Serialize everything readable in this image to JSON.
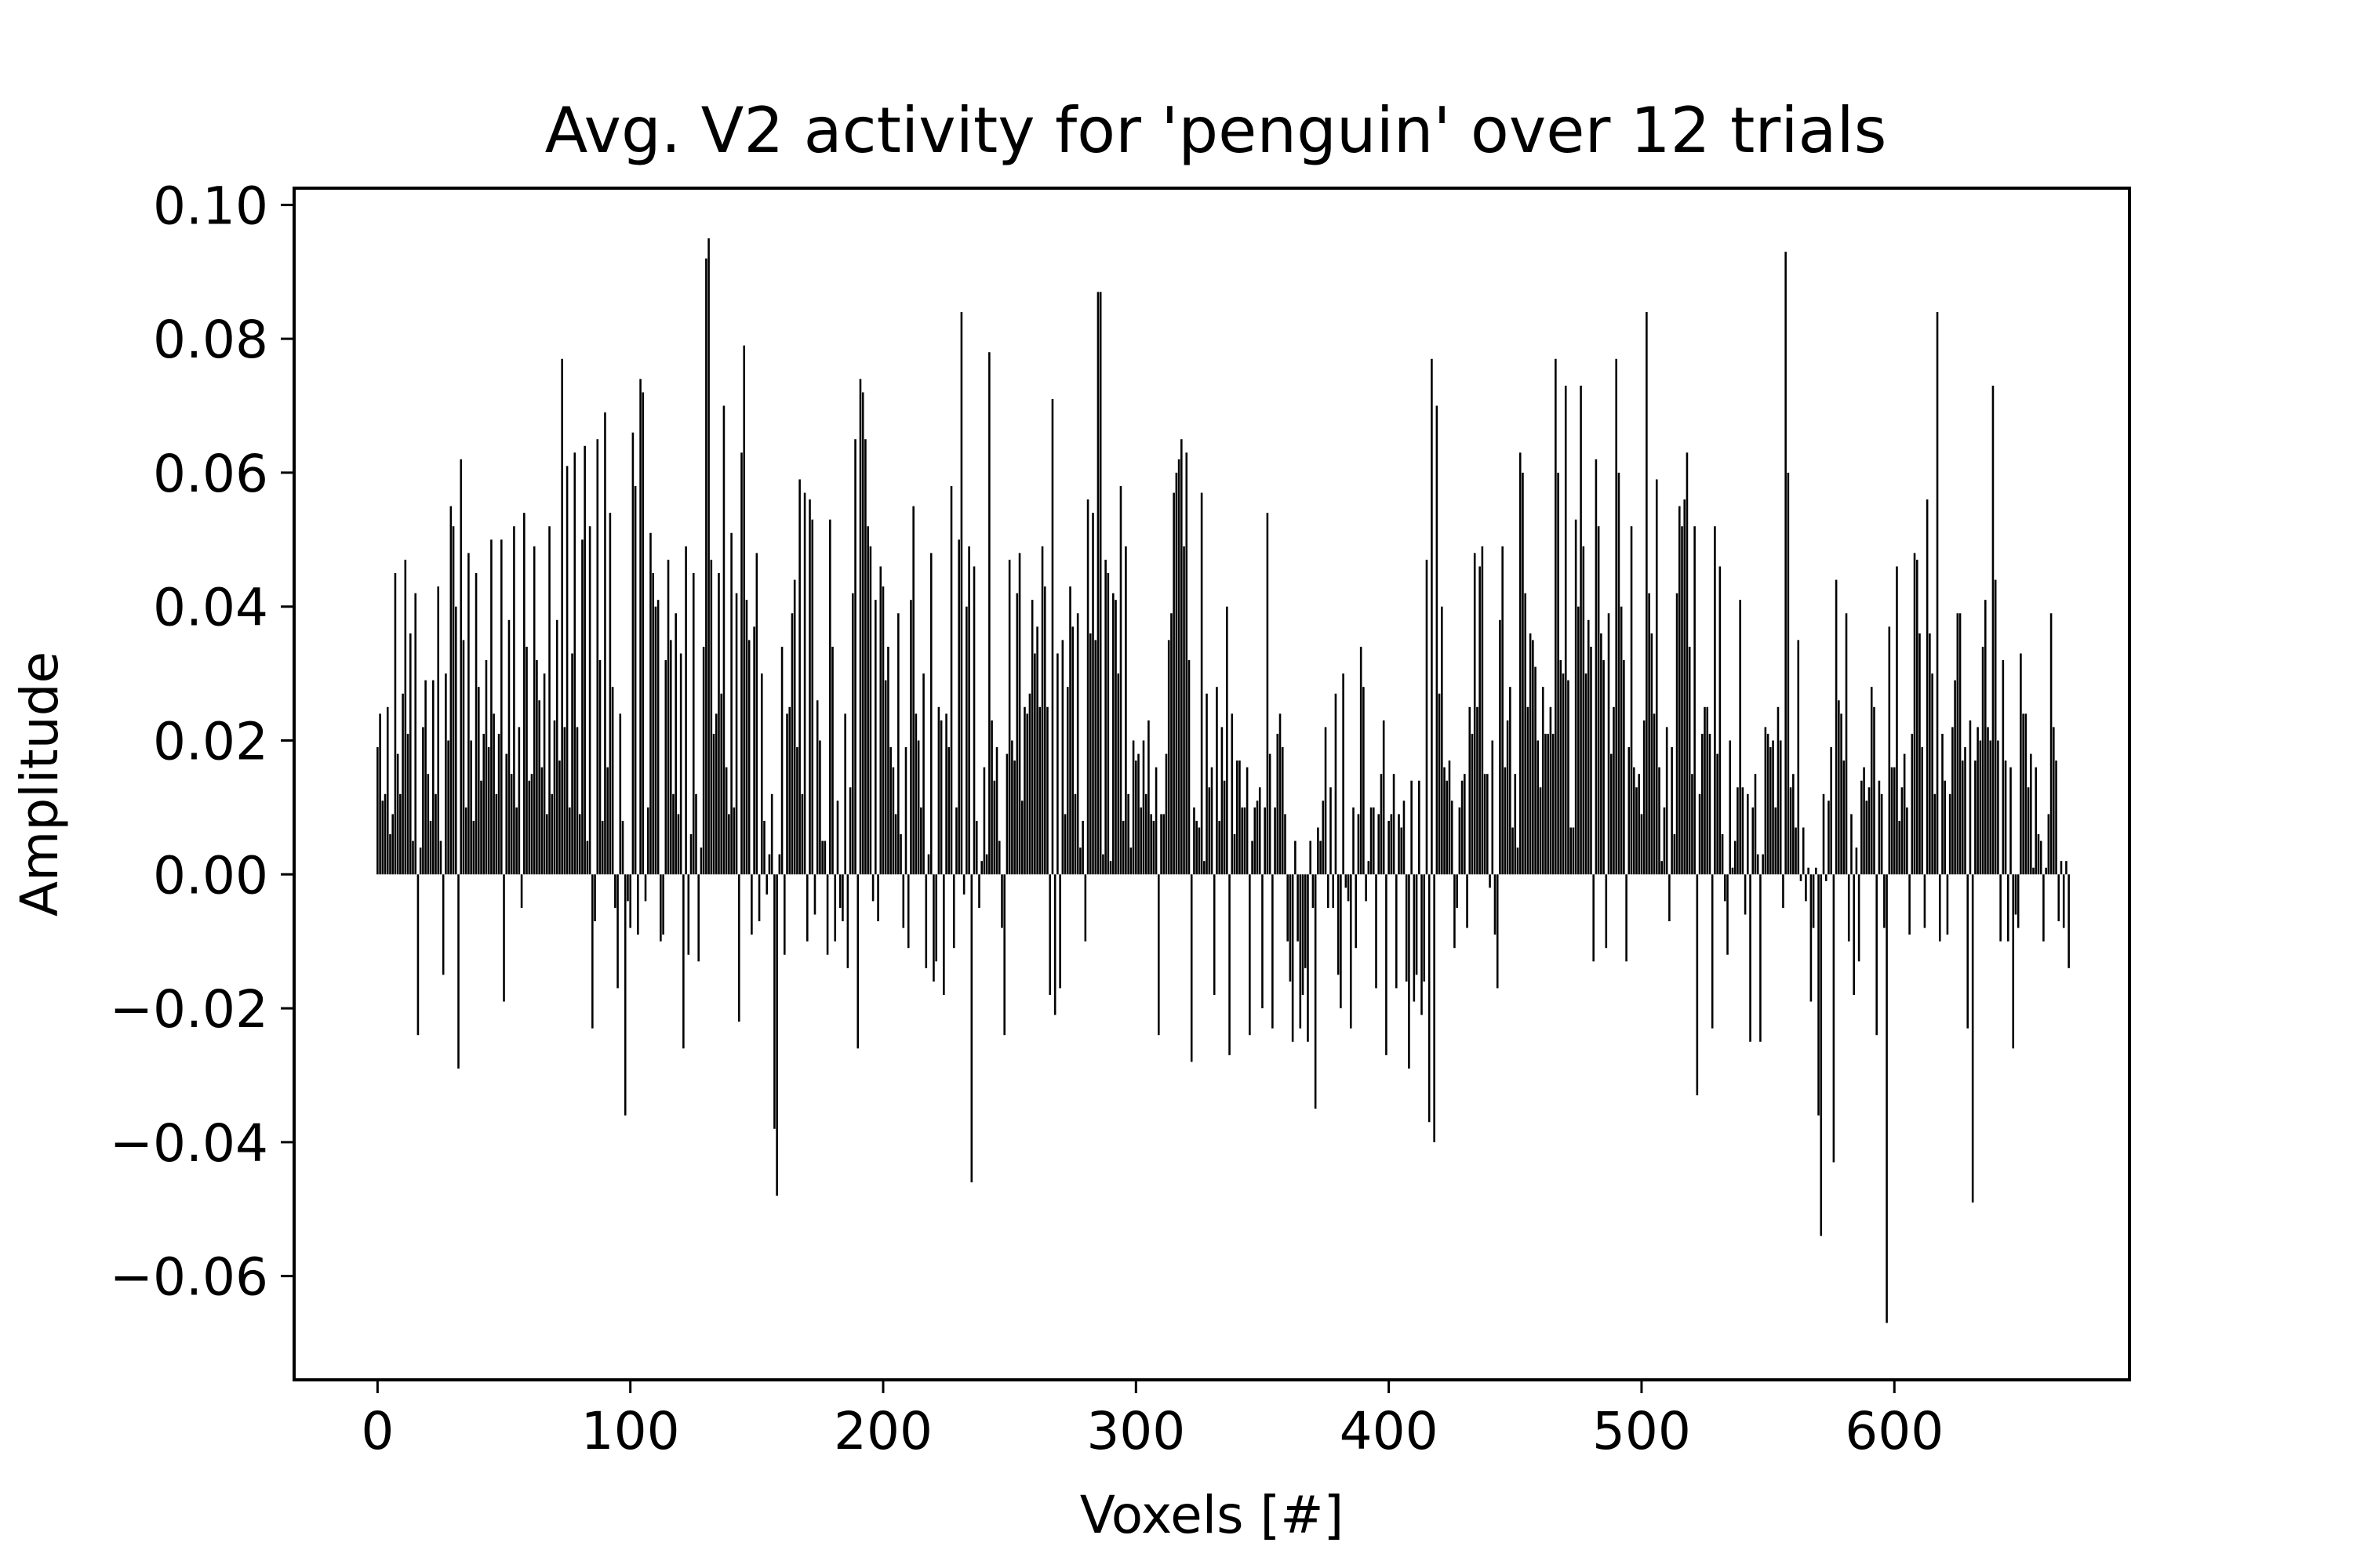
{
  "chart_data": {
    "type": "bar",
    "title": "Avg. V2 activity for 'penguin' over 12 trials",
    "xlabel": "Voxels [#]",
    "ylabel": "Amplitude",
    "xlim": [
      -33,
      693
    ],
    "ylim": [
      -0.0755,
      0.1025
    ],
    "xticks": [
      0,
      100,
      200,
      300,
      400,
      500,
      600
    ],
    "xtick_labels": [
      "0",
      "100",
      "200",
      "300",
      "400",
      "500",
      "600"
    ],
    "yticks": [
      -0.06,
      -0.04,
      -0.02,
      0.0,
      0.02,
      0.04,
      0.06,
      0.08,
      0.1
    ],
    "ytick_labels": [
      "−0.06",
      "−0.04",
      "−0.02",
      "0.00",
      "0.02",
      "0.04",
      "0.06",
      "0.08",
      "0.10"
    ],
    "grid": false,
    "bar_color": "#000000",
    "series": [
      {
        "x_start": 0,
        "x_step": 1,
        "values": [
          0.019,
          0.024,
          0.011,
          0.012,
          0.025,
          0.006,
          0.009,
          0.045,
          0.018,
          0.012,
          0.027,
          0.047,
          0.021,
          0.036,
          0.005,
          0.042,
          -0.024,
          0.004,
          0.022,
          0.029,
          0.015,
          0.008,
          0.029,
          0.012,
          0.043,
          0.005,
          -0.015,
          0.03,
          0.02,
          0.055,
          0.052,
          0.04,
          -0.029,
          0.062,
          0.035,
          0.01,
          0.048,
          0.02,
          0.008,
          0.045,
          0.028,
          0.014,
          0.021,
          0.032,
          0.019,
          0.05,
          0.024,
          0.012,
          0.021,
          0.05,
          -0.019,
          0.018,
          0.038,
          0.015,
          0.052,
          0.01,
          0.022,
          -0.005,
          0.054,
          0.034,
          0.014,
          0.015,
          0.049,
          0.032,
          0.026,
          0.016,
          0.03,
          0.009,
          0.052,
          0.012,
          0.023,
          0.038,
          0.017,
          0.077,
          0.022,
          0.061,
          0.01,
          0.033,
          0.063,
          0.022,
          0.009,
          0.05,
          0.064,
          0.005,
          0.052,
          -0.023,
          -0.007,
          0.065,
          0.032,
          0.008,
          0.069,
          0.016,
          0.054,
          0.028,
          -0.005,
          -0.017,
          0.024,
          0.008,
          -0.036,
          -0.004,
          -0.008,
          0.066,
          0.058,
          -0.009,
          0.074,
          0.072,
          -0.004,
          0.01,
          0.051,
          0.045,
          0.04,
          0.041,
          -0.01,
          -0.009,
          0.032,
          0.047,
          0.035,
          0.012,
          0.039,
          0.009,
          0.033,
          -0.026,
          0.049,
          -0.012,
          0.006,
          0.045,
          0.012,
          -0.013,
          0.004,
          0.034,
          0.092,
          0.095,
          0.047,
          0.021,
          0.024,
          0.045,
          0.027,
          0.07,
          0.016,
          0.009,
          0.051,
          0.01,
          0.042,
          -0.022,
          0.063,
          0.079,
          0.041,
          0.035,
          -0.009,
          0.037,
          0.048,
          -0.007,
          0.03,
          0.008,
          -0.003,
          0.003,
          0.012,
          -0.038,
          -0.048,
          0.003,
          0.034,
          -0.012,
          0.024,
          0.025,
          0.039,
          0.044,
          0.019,
          0.059,
          0.012,
          0.057,
          -0.01,
          0.056,
          0.053,
          -0.006,
          0.026,
          0.02,
          0.005,
          0.005,
          -0.012,
          0.053,
          0.034,
          -0.01,
          0.011,
          -0.005,
          -0.007,
          0.024,
          -0.014,
          0.013,
          0.042,
          0.065,
          -0.026,
          0.074,
          0.072,
          0.065,
          0.052,
          0.049,
          -0.004,
          0.041,
          -0.007,
          0.046,
          0.043,
          0.029,
          0.034,
          0.019,
          0.016,
          0.009,
          0.039,
          0.006,
          -0.008,
          0.019,
          -0.011,
          0.041,
          0.055,
          0.024,
          0.02,
          0.01,
          0.03,
          -0.014,
          0.003,
          0.048,
          -0.016,
          -0.013,
          0.025,
          0.023,
          -0.018,
          0.024,
          0.019,
          0.058,
          -0.011,
          0.01,
          0.05,
          0.084,
          -0.003,
          0.04,
          0.049,
          -0.046,
          0.046,
          0.008,
          -0.005,
          0.002,
          0.016,
          0.003,
          0.078,
          0.023,
          0.014,
          0.019,
          0.005,
          -0.008,
          -0.024,
          0.018,
          0.047,
          0.02,
          0.017,
          0.042,
          0.048,
          0.011,
          0.025,
          0.024,
          0.027,
          0.041,
          0.033,
          0.037,
          0.025,
          0.049,
          0.043,
          0.025,
          -0.018,
          0.071,
          -0.021,
          0.033,
          -0.017,
          0.035,
          0.009,
          0.028,
          0.043,
          0.037,
          0.012,
          0.039,
          0.004,
          0.008,
          -0.01,
          0.056,
          0.036,
          0.054,
          0.035,
          0.087,
          0.087,
          0.003,
          0.047,
          0.045,
          0.002,
          0.042,
          0.041,
          0.03,
          0.058,
          0.008,
          0.049,
          0.012,
          0.004,
          0.02,
          0.017,
          0.018,
          0.01,
          0.02,
          0.012,
          0.023,
          0.009,
          0.008,
          0.016,
          -0.024,
          0.009,
          0.009,
          0.018,
          0.035,
          0.039,
          0.057,
          0.06,
          0.062,
          0.065,
          0.049,
          0.063,
          0.032,
          -0.028,
          0.01,
          0.008,
          0.007,
          0.057,
          0.002,
          0.027,
          0.013,
          0.016,
          -0.018,
          0.028,
          0.008,
          0.022,
          0.014,
          0.04,
          -0.027,
          0.024,
          0.006,
          0.017,
          0.017,
          0.01,
          0.01,
          0.016,
          -0.024,
          0.005,
          0.01,
          0.011,
          0.013,
          -0.02,
          0.01,
          0.054,
          0.018,
          -0.023,
          0.01,
          0.021,
          0.024,
          0.019,
          0.009,
          -0.01,
          -0.016,
          -0.025,
          0.005,
          -0.01,
          -0.023,
          -0.018,
          -0.014,
          -0.025,
          0.005,
          -0.005,
          -0.035,
          0.007,
          0.005,
          0.011,
          0.022,
          -0.005,
          0.013,
          -0.005,
          0.027,
          -0.015,
          -0.02,
          0.03,
          -0.002,
          -0.004,
          -0.023,
          0.01,
          -0.011,
          0.009,
          0.034,
          0.028,
          -0.004,
          0.002,
          0.01,
          0.01,
          -0.017,
          0.009,
          0.015,
          0.023,
          -0.027,
          0.008,
          0.009,
          0.015,
          -0.017,
          0.009,
          0.007,
          0.011,
          -0.016,
          -0.029,
          0.014,
          -0.019,
          -0.015,
          0.014,
          -0.021,
          -0.016,
          0.047,
          -0.037,
          0.077,
          -0.04,
          0.07,
          0.027,
          0.04,
          0.016,
          0.014,
          0.017,
          0.011,
          -0.011,
          -0.005,
          0.01,
          0.014,
          0.015,
          -0.008,
          0.025,
          0.021,
          0.048,
          0.025,
          0.046,
          0.049,
          0.015,
          0.015,
          -0.002,
          0.02,
          -0.009,
          -0.017,
          0.038,
          0.049,
          0.016,
          0.023,
          0.028,
          0.007,
          0.015,
          0.004,
          0.063,
          0.06,
          0.042,
          0.025,
          0.036,
          0.035,
          0.031,
          0.02,
          0.013,
          0.028,
          0.021,
          0.021,
          0.025,
          0.021,
          0.077,
          0.06,
          0.032,
          0.03,
          0.073,
          0.029,
          0.007,
          0.007,
          0.053,
          0.04,
          0.073,
          0.049,
          0.03,
          0.038,
          0.034,
          -0.013,
          0.062,
          0.052,
          0.036,
          0.032,
          -0.011,
          0.039,
          0.018,
          0.025,
          0.077,
          0.06,
          0.04,
          0.032,
          -0.013,
          0.019,
          0.052,
          0.016,
          0.013,
          0.015,
          0.009,
          0.023,
          0.084,
          0.042,
          0.036,
          0.024,
          0.059,
          0.016,
          0.002,
          0.01,
          0.022,
          -0.007,
          0.019,
          0.006,
          0.042,
          0.055,
          0.052,
          0.056,
          0.063,
          0.034,
          0.015,
          0.052,
          -0.033,
          0.012,
          0.021,
          0.025,
          0.025,
          0.021,
          -0.023,
          0.052,
          0.018,
          0.046,
          0.006,
          -0.004,
          -0.012,
          0.02,
          0.001,
          0.005,
          0.013,
          0.041,
          0.013,
          -0.006,
          0.012,
          -0.025,
          0.01,
          0.015,
          0.003,
          -0.025,
          0.003,
          0.022,
          0.021,
          0.019,
          0.02,
          0.01,
          0.025,
          0.02,
          -0.005,
          0.093,
          0.06,
          0.013,
          0.015,
          0.007,
          0.035,
          -0.001,
          0.007,
          -0.004,
          0.001,
          -0.019,
          -0.008,
          0.001,
          -0.036,
          -0.054,
          0.012,
          -0.001,
          0.011,
          0.019,
          -0.043,
          0.044,
          0.026,
          0.024,
          0.017,
          0.039,
          -0.01,
          0.009,
          -0.018,
          0.004,
          -0.013,
          0.014,
          0.016,
          0.011,
          0.013,
          0.028,
          0.025,
          -0.024,
          0.014,
          0.012,
          -0.008,
          -0.067,
          0.037,
          0.016,
          0.016,
          0.046,
          0.008,
          0.013,
          0.018,
          0.01,
          -0.009,
          0.021,
          0.048,
          0.047,
          0.036,
          0.019,
          -0.008,
          0.056,
          0.036,
          0.03,
          0.012,
          0.084,
          -0.01,
          0.021,
          0.014,
          -0.009,
          0.012,
          0.022,
          0.029,
          0.039,
          0.039,
          0.017,
          0.019,
          -0.023,
          0.023,
          -0.049,
          0.017,
          0.022,
          0.02,
          0.034,
          0.041,
          0.022,
          0.02,
          0.073,
          0.044,
          0.02,
          -0.01,
          0.032,
          0.017,
          -0.01,
          0.016,
          -0.026,
          -0.006,
          -0.008,
          0.033,
          0.024,
          0.024,
          0.013,
          0.018,
          0.001,
          0.016,
          0.006,
          0.005,
          -0.01,
          0.001,
          0.009,
          0.039,
          0.022,
          0.017,
          -0.007,
          0.002,
          -0.008,
          0.002,
          -0.014
        ]
      }
    ]
  }
}
